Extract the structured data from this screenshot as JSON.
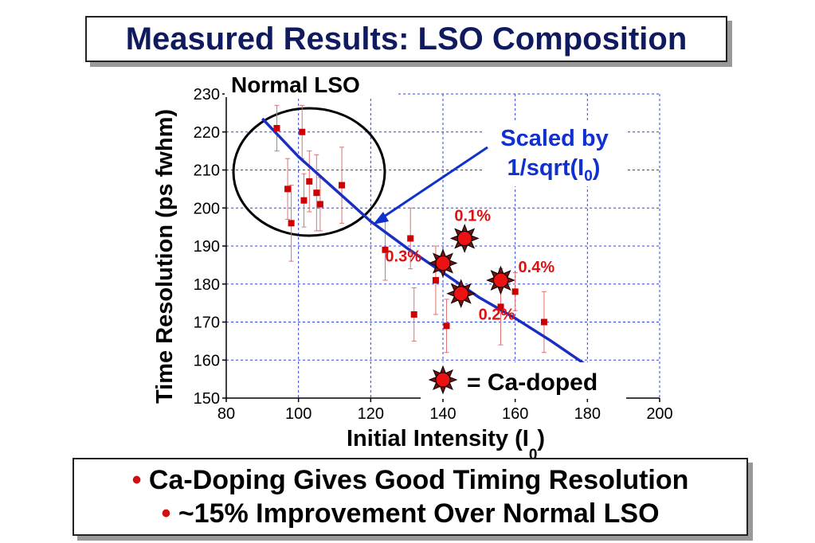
{
  "title": "Measured Results: LSO Composition",
  "bullets": [
    {
      "marker": "•",
      "text": "Ca-Doping Gives Good Timing Resolution"
    },
    {
      "marker": "•",
      "text": "~15% Improvement Over Normal LSO"
    }
  ],
  "colors": {
    "title": "#101a5e",
    "points": "#cc0000",
    "fit": "#1a2fc0",
    "grid": "#3344cc",
    "annotation_blue": "#1030d0",
    "annotation_red": "#dd1111"
  },
  "chart_data": {
    "type": "scatter",
    "xlabel": "Initial Intensity (I",
    "xlabel_sub": "0",
    "xlabel_end": ")",
    "ylabel": "Time Resolution (ps fwhm)",
    "xlim": [
      80,
      200
    ],
    "ylim": [
      150,
      230
    ],
    "xticks": [
      80,
      100,
      120,
      140,
      160,
      180,
      200
    ],
    "yticks": [
      150,
      160,
      170,
      180,
      190,
      200,
      210,
      220,
      230
    ],
    "grid": true,
    "annotations": {
      "normal_lso": "Normal LSO",
      "scaled_line1": "Scaled by",
      "scaled_line2": "1/sqrt(I",
      "scaled_sub": "0",
      "scaled_end": ")",
      "legend_ca": "= Ca-doped"
    },
    "series": [
      {
        "marker": "square",
        "points": [
          {
            "x": 94,
            "y": 221,
            "err": 6
          },
          {
            "x": 97,
            "y": 205,
            "err": 8
          },
          {
            "x": 98,
            "y": 196,
            "err": 10
          },
          {
            "x": 101,
            "y": 220,
            "err": 7
          },
          {
            "x": 101.5,
            "y": 202,
            "err": 7
          },
          {
            "x": 103,
            "y": 207,
            "err": 8
          },
          {
            "x": 105,
            "y": 204,
            "err": 10
          },
          {
            "x": 106,
            "y": 201,
            "err": 7
          },
          {
            "x": 112,
            "y": 206,
            "err": 10
          },
          {
            "x": 124,
            "y": 189,
            "err": 8
          },
          {
            "x": 131,
            "y": 192,
            "err": 8
          },
          {
            "x": 132,
            "y": 172,
            "err": 7
          },
          {
            "x": 138,
            "y": 181,
            "err": 9
          },
          {
            "x": 141,
            "y": 169,
            "err": 7
          },
          {
            "x": 156,
            "y": 174,
            "err": 10
          },
          {
            "x": 160,
            "y": 178,
            "err": 5
          },
          {
            "x": 168,
            "y": 170,
            "err": 8
          }
        ]
      },
      {
        "name": "Ca-doped",
        "marker": "star",
        "points": [
          {
            "x": 146,
            "y": 192,
            "label": "0.1%"
          },
          {
            "x": 140,
            "y": 185.5,
            "label": "0.3%"
          },
          {
            "x": 156,
            "y": 181,
            "label": "0.4%"
          },
          {
            "x": 145,
            "y": 177.5,
            "label": "0.2%"
          }
        ]
      },
      {
        "marker": "line",
        "points": [
          {
            "x": 90,
            "y": 223.5
          },
          {
            "x": 100,
            "y": 213.5
          },
          {
            "x": 110,
            "y": 205
          },
          {
            "x": 120,
            "y": 196.5
          },
          {
            "x": 130,
            "y": 189.5
          },
          {
            "x": 140,
            "y": 183
          },
          {
            "x": 150,
            "y": 176.5
          },
          {
            "x": 160,
            "y": 171
          },
          {
            "x": 170,
            "y": 165
          },
          {
            "x": 180,
            "y": 158.5
          }
        ]
      }
    ]
  }
}
